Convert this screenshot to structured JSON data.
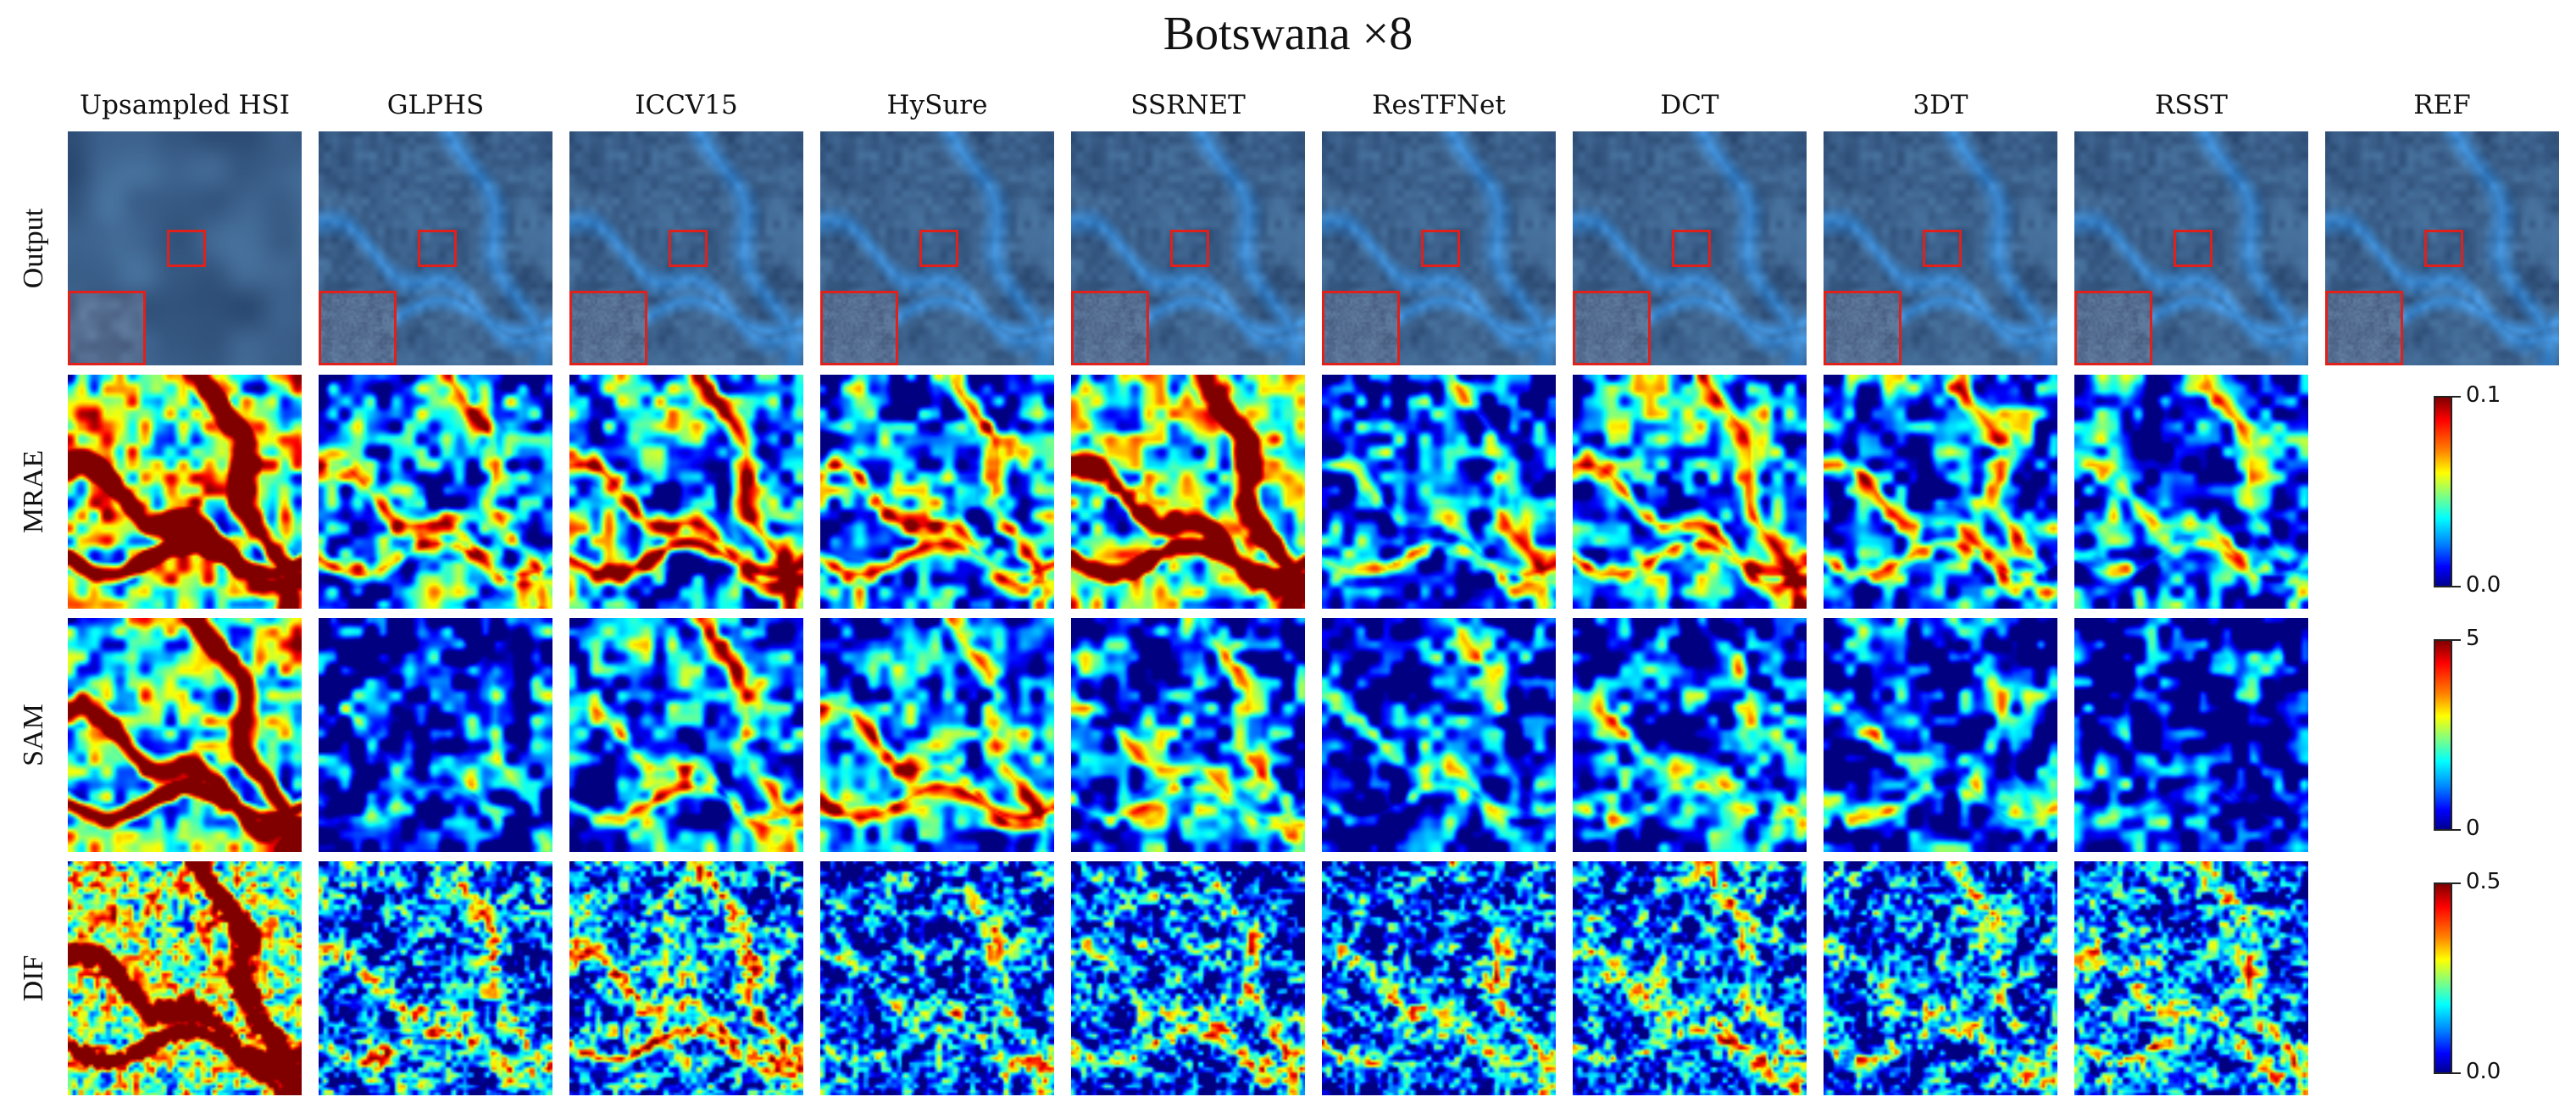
{
  "figure": {
    "title": "Botswana ×8",
    "methods": [
      "Upsampled HSI",
      "GLPHS",
      "ICCV15",
      "HySure",
      "SSRNET",
      "ResTFNet",
      "DCT",
      "3DT",
      "RSST",
      "REF"
    ],
    "rows": [
      "Output",
      "MRAE",
      "SAM",
      "DIF"
    ],
    "colorbars": [
      {
        "row": "MRAE",
        "max": "0.1",
        "min": "0.0"
      },
      {
        "row": "SAM",
        "max": "5",
        "min": "0"
      },
      {
        "row": "DIF",
        "max": "0.5",
        "min": "0.0"
      }
    ],
    "colormap": "jet",
    "roi_color": "#e0201a"
  }
}
